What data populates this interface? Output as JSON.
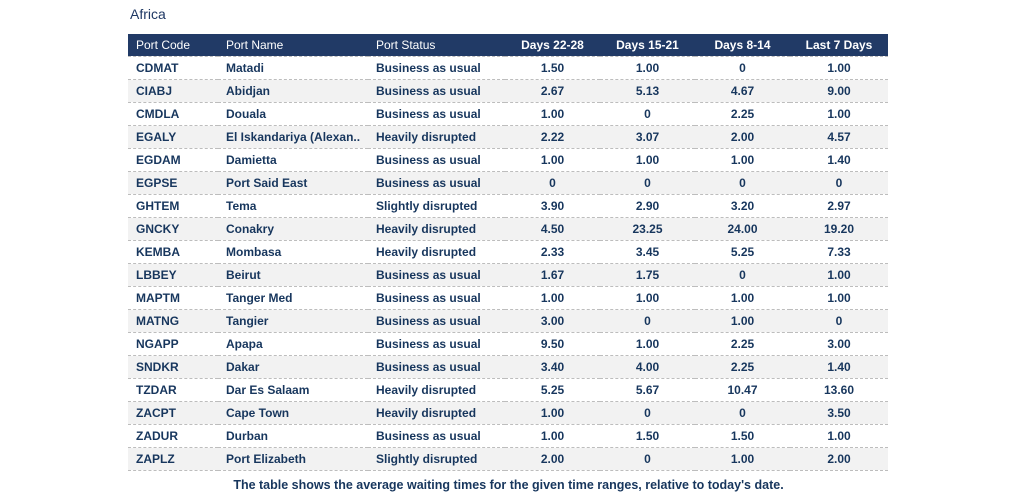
{
  "title": "Africa",
  "caption": "The table shows the average waiting times for the given time ranges, relative to today's date.",
  "colors": {
    "header_bg": "#213A66",
    "header_text": "#FFFFFF",
    "cell_text": "#17365D",
    "stripe_bg": "#F2F2F2",
    "row_border": "#BDBDBD",
    "title_text": "#1F3864"
  },
  "chart_data": {
    "type": "table",
    "title": "Africa",
    "columns": [
      {
        "key": "port_code",
        "label": "Port Code",
        "align": "left"
      },
      {
        "key": "port_name",
        "label": "Port Name",
        "align": "left"
      },
      {
        "key": "port_status",
        "label": "Port Status",
        "align": "left"
      },
      {
        "key": "days_22_28",
        "label": "Days 22-28",
        "align": "center"
      },
      {
        "key": "days_15_21",
        "label": "Days 15-21",
        "align": "center"
      },
      {
        "key": "days_8_14",
        "label": "Days 8-14",
        "align": "center"
      },
      {
        "key": "last_7_days",
        "label": "Last 7 Days",
        "align": "center"
      }
    ],
    "rows": [
      {
        "port_code": "CDMAT",
        "port_name": "Matadi",
        "port_status": "Business as usual",
        "days_22_28": "1.50",
        "days_15_21": "1.00",
        "days_8_14": "0",
        "last_7_days": "1.00"
      },
      {
        "port_code": "CIABJ",
        "port_name": "Abidjan",
        "port_status": "Business as usual",
        "days_22_28": "2.67",
        "days_15_21": "5.13",
        "days_8_14": "4.67",
        "last_7_days": "9.00"
      },
      {
        "port_code": "CMDLA",
        "port_name": "Douala",
        "port_status": "Business as usual",
        "days_22_28": "1.00",
        "days_15_21": "0",
        "days_8_14": "2.25",
        "last_7_days": "1.00"
      },
      {
        "port_code": "EGALY",
        "port_name": "El Iskandariya (Alexan..",
        "port_status": "Heavily disrupted",
        "days_22_28": "2.22",
        "days_15_21": "3.07",
        "days_8_14": "2.00",
        "last_7_days": "4.57"
      },
      {
        "port_code": "EGDAM",
        "port_name": "Damietta",
        "port_status": "Business as usual",
        "days_22_28": "1.00",
        "days_15_21": "1.00",
        "days_8_14": "1.00",
        "last_7_days": "1.40"
      },
      {
        "port_code": "EGPSE",
        "port_name": "Port Said East",
        "port_status": "Business as usual",
        "days_22_28": "0",
        "days_15_21": "0",
        "days_8_14": "0",
        "last_7_days": "0"
      },
      {
        "port_code": "GHTEM",
        "port_name": "Tema",
        "port_status": "Slightly disrupted",
        "days_22_28": "3.90",
        "days_15_21": "2.90",
        "days_8_14": "3.20",
        "last_7_days": "2.97"
      },
      {
        "port_code": "GNCKY",
        "port_name": "Conakry",
        "port_status": "Heavily disrupted",
        "days_22_28": "4.50",
        "days_15_21": "23.25",
        "days_8_14": "24.00",
        "last_7_days": "19.20"
      },
      {
        "port_code": "KEMBA",
        "port_name": "Mombasa",
        "port_status": "Heavily disrupted",
        "days_22_28": "2.33",
        "days_15_21": "3.45",
        "days_8_14": "5.25",
        "last_7_days": "7.33"
      },
      {
        "port_code": "LBBEY",
        "port_name": "Beirut",
        "port_status": "Business as usual",
        "days_22_28": "1.67",
        "days_15_21": "1.75",
        "days_8_14": "0",
        "last_7_days": "1.00"
      },
      {
        "port_code": "MAPTM",
        "port_name": "Tanger Med",
        "port_status": "Business as usual",
        "days_22_28": "1.00",
        "days_15_21": "1.00",
        "days_8_14": "1.00",
        "last_7_days": "1.00"
      },
      {
        "port_code": "MATNG",
        "port_name": "Tangier",
        "port_status": "Business as usual",
        "days_22_28": "3.00",
        "days_15_21": "0",
        "days_8_14": "1.00",
        "last_7_days": "0"
      },
      {
        "port_code": "NGAPP",
        "port_name": "Apapa",
        "port_status": "Business as usual",
        "days_22_28": "9.50",
        "days_15_21": "1.00",
        "days_8_14": "2.25",
        "last_7_days": "3.00"
      },
      {
        "port_code": "SNDKR",
        "port_name": "Dakar",
        "port_status": "Business as usual",
        "days_22_28": "3.40",
        "days_15_21": "4.00",
        "days_8_14": "2.25",
        "last_7_days": "1.40"
      },
      {
        "port_code": "TZDAR",
        "port_name": "Dar Es Salaam",
        "port_status": "Heavily disrupted",
        "days_22_28": "5.25",
        "days_15_21": "5.67",
        "days_8_14": "10.47",
        "last_7_days": "13.60"
      },
      {
        "port_code": "ZACPT",
        "port_name": "Cape Town",
        "port_status": "Heavily disrupted",
        "days_22_28": "1.00",
        "days_15_21": "0",
        "days_8_14": "0",
        "last_7_days": "3.50"
      },
      {
        "port_code": "ZADUR",
        "port_name": "Durban",
        "port_status": "Business as usual",
        "days_22_28": "1.00",
        "days_15_21": "1.50",
        "days_8_14": "1.50",
        "last_7_days": "1.00"
      },
      {
        "port_code": "ZAPLZ",
        "port_name": "Port Elizabeth",
        "port_status": "Slightly disrupted",
        "days_22_28": "2.00",
        "days_15_21": "0",
        "days_8_14": "1.00",
        "last_7_days": "2.00"
      }
    ]
  }
}
